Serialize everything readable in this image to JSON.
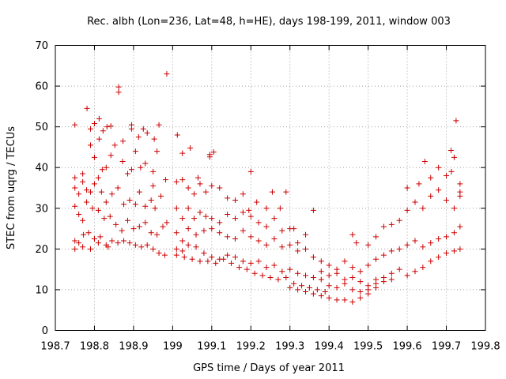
{
  "chart_data": {
    "type": "scatter",
    "title": "Rec. albh (Lon=236, Lat=48, h=HE), days 198-199, 2011, window 003",
    "xlabel": "GPS time / Days of year 2011",
    "ylabel": "STEC from uqrg / TECUs",
    "xlim": [
      198.7,
      199.8
    ],
    "ylim": [
      0,
      70
    ],
    "xticks": [
      198.7,
      198.8,
      198.9,
      199.0,
      199.1,
      199.2,
      199.3,
      199.4,
      199.5,
      199.6,
      199.7,
      199.8
    ],
    "xtick_labels": [
      "198.7",
      "198.8",
      "198.9",
      "199",
      "199.1",
      "199.2",
      "199.3",
      "199.4",
      "199.5",
      "199.6",
      "199.7",
      "199.8"
    ],
    "yticks": [
      0,
      10,
      20,
      30,
      40,
      50,
      60,
      70
    ],
    "ytick_labels": [
      "0",
      "10",
      "20",
      "30",
      "40",
      "50",
      "60",
      "70"
    ],
    "grid": true,
    "marker": "plus",
    "marker_color": "#cc0000",
    "series": [
      {
        "name": "STEC",
        "points": [
          [
            198.75,
            50.5
          ],
          [
            198.781,
            54.5
          ],
          [
            198.79,
            49.5
          ],
          [
            198.8,
            50.8
          ],
          [
            198.812,
            52.0
          ],
          [
            198.822,
            49.0
          ],
          [
            198.832,
            50.0
          ],
          [
            198.842,
            50.2
          ],
          [
            198.862,
            59.8
          ],
          [
            198.862,
            58.5
          ],
          [
            198.873,
            46.5
          ],
          [
            198.895,
            50.5
          ],
          [
            198.895,
            49.5
          ],
          [
            198.913,
            47.5
          ],
          [
            198.925,
            49.5
          ],
          [
            198.935,
            48.5
          ],
          [
            198.953,
            47.0
          ],
          [
            198.965,
            50.5
          ],
          [
            198.985,
            63.0
          ],
          [
            199.012,
            48.0
          ],
          [
            199.025,
            43.5
          ],
          [
            199.045,
            44.8
          ],
          [
            199.095,
            43.2
          ],
          [
            199.105,
            43.8
          ],
          [
            199.095,
            42.6
          ],
          [
            199.065,
            37.5
          ],
          [
            199.2,
            39.0
          ],
          [
            199.645,
            41.5
          ],
          [
            199.712,
            44.2
          ],
          [
            199.72,
            42.5
          ],
          [
            199.725,
            51.5
          ],
          [
            199.713,
            39.0
          ],
          [
            198.75,
            37.5
          ],
          [
            198.77,
            38.5
          ],
          [
            198.79,
            45.5
          ],
          [
            198.8,
            42.5
          ],
          [
            198.812,
            47.0
          ],
          [
            198.82,
            39.5
          ],
          [
            198.83,
            40.0
          ],
          [
            198.842,
            43.0
          ],
          [
            198.852,
            45.5
          ],
          [
            198.872,
            41.5
          ],
          [
            198.885,
            38.5
          ],
          [
            198.895,
            39.5
          ],
          [
            198.905,
            44.0
          ],
          [
            198.918,
            40.0
          ],
          [
            198.93,
            41.0
          ],
          [
            198.95,
            39.0
          ],
          [
            198.96,
            44.0
          ],
          [
            198.982,
            37.0
          ],
          [
            198.95,
            35.5
          ],
          [
            198.75,
            35.0
          ],
          [
            198.76,
            33.5
          ],
          [
            198.77,
            36.5
          ],
          [
            198.78,
            34.5
          ],
          [
            198.79,
            34.0
          ],
          [
            198.8,
            36.0
          ],
          [
            198.81,
            37.5
          ],
          [
            198.818,
            34.0
          ],
          [
            198.83,
            31.5
          ],
          [
            198.845,
            33.5
          ],
          [
            198.86,
            35.0
          ],
          [
            198.875,
            31.0
          ],
          [
            198.89,
            32.0
          ],
          [
            198.905,
            31.0
          ],
          [
            198.915,
            34.0
          ],
          [
            198.93,
            30.5
          ],
          [
            198.945,
            32.0
          ],
          [
            198.955,
            30.0
          ],
          [
            198.97,
            33.0
          ],
          [
            198.985,
            26.5
          ],
          [
            198.75,
            30.5
          ],
          [
            198.76,
            28.5
          ],
          [
            198.77,
            27.0
          ],
          [
            198.78,
            31.5
          ],
          [
            198.795,
            30.0
          ],
          [
            198.81,
            29.5
          ],
          [
            198.825,
            27.5
          ],
          [
            198.84,
            28.0
          ],
          [
            198.855,
            26.0
          ],
          [
            198.87,
            24.5
          ],
          [
            198.885,
            27.0
          ],
          [
            198.9,
            25.0
          ],
          [
            198.915,
            25.5
          ],
          [
            198.93,
            26.5
          ],
          [
            198.945,
            24.0
          ],
          [
            198.96,
            23.5
          ],
          [
            198.975,
            25.5
          ],
          [
            198.75,
            22.0
          ],
          [
            198.76,
            21.5
          ],
          [
            198.772,
            23.5
          ],
          [
            198.785,
            24.0
          ],
          [
            198.8,
            22.5
          ],
          [
            198.815,
            23.0
          ],
          [
            198.83,
            21.0
          ],
          [
            198.845,
            22.0
          ],
          [
            198.86,
            21.5
          ],
          [
            198.875,
            22.0
          ],
          [
            198.89,
            21.5
          ],
          [
            198.905,
            21.0
          ],
          [
            198.92,
            20.5
          ],
          [
            198.935,
            21.0
          ],
          [
            198.95,
            20.0
          ],
          [
            198.965,
            19.0
          ],
          [
            198.98,
            18.5
          ],
          [
            198.75,
            20.0
          ],
          [
            198.77,
            20.5
          ],
          [
            198.79,
            20.0
          ],
          [
            198.81,
            21.5
          ],
          [
            198.835,
            20.5
          ],
          [
            199.01,
            36.5
          ],
          [
            199.025,
            37.0
          ],
          [
            199.04,
            35.0
          ],
          [
            199.055,
            33.5
          ],
          [
            199.07,
            36.0
          ],
          [
            199.085,
            34.0
          ],
          [
            199.1,
            35.5
          ],
          [
            199.12,
            35.0
          ],
          [
            199.14,
            32.5
          ],
          [
            199.16,
            32.0
          ],
          [
            199.18,
            33.5
          ],
          [
            199.195,
            29.5
          ],
          [
            199.215,
            31.5
          ],
          [
            199.24,
            30.0
          ],
          [
            199.255,
            34.0
          ],
          [
            199.275,
            30.0
          ],
          [
            199.29,
            34.0
          ],
          [
            199.31,
            25.0
          ],
          [
            199.01,
            30.0
          ],
          [
            199.025,
            27.5
          ],
          [
            199.04,
            30.0
          ],
          [
            199.055,
            27.5
          ],
          [
            199.07,
            29.0
          ],
          [
            199.085,
            28.0
          ],
          [
            199.1,
            27.5
          ],
          [
            199.12,
            26.5
          ],
          [
            199.14,
            28.5
          ],
          [
            199.16,
            27.5
          ],
          [
            199.18,
            29.0
          ],
          [
            199.2,
            28.0
          ],
          [
            199.22,
            26.5
          ],
          [
            199.24,
            25.5
          ],
          [
            199.26,
            27.5
          ],
          [
            199.28,
            24.5
          ],
          [
            199.3,
            25.0
          ],
          [
            199.32,
            21.5
          ],
          [
            199.34,
            23.5
          ],
          [
            199.36,
            29.5
          ],
          [
            199.38,
            17.0
          ],
          [
            199.01,
            24.0
          ],
          [
            199.025,
            22.0
          ],
          [
            199.04,
            25.0
          ],
          [
            199.06,
            23.5
          ],
          [
            199.08,
            24.5
          ],
          [
            199.1,
            25.0
          ],
          [
            199.12,
            24.0
          ],
          [
            199.14,
            23.0
          ],
          [
            199.16,
            22.5
          ],
          [
            199.18,
            24.5
          ],
          [
            199.2,
            23.0
          ],
          [
            199.22,
            22.0
          ],
          [
            199.24,
            21.0
          ],
          [
            199.26,
            22.5
          ],
          [
            199.28,
            20.5
          ],
          [
            199.3,
            21.0
          ],
          [
            199.32,
            19.5
          ],
          [
            199.34,
            20.0
          ],
          [
            199.36,
            18.0
          ],
          [
            199.01,
            20.0
          ],
          [
            199.025,
            19.5
          ],
          [
            199.04,
            21.0
          ],
          [
            199.06,
            20.5
          ],
          [
            199.08,
            19.0
          ],
          [
            199.1,
            18.0
          ],
          [
            199.12,
            17.5
          ],
          [
            199.14,
            18.5
          ],
          [
            199.16,
            18.0
          ],
          [
            199.18,
            17.0
          ],
          [
            199.2,
            16.5
          ],
          [
            199.22,
            17.0
          ],
          [
            199.24,
            15.5
          ],
          [
            199.26,
            16.0
          ],
          [
            199.28,
            14.5
          ],
          [
            199.3,
            15.0
          ],
          [
            199.32,
            14.0
          ],
          [
            199.34,
            13.5
          ],
          [
            199.36,
            13.0
          ],
          [
            199.38,
            12.5
          ],
          [
            199.01,
            18.5
          ],
          [
            199.03,
            18.0
          ],
          [
            199.05,
            17.5
          ],
          [
            199.07,
            17.0
          ],
          [
            199.09,
            17.0
          ],
          [
            199.11,
            16.5
          ],
          [
            199.13,
            17.5
          ],
          [
            199.15,
            16.5
          ],
          [
            199.17,
            15.5
          ],
          [
            199.19,
            15.0
          ],
          [
            199.21,
            14.0
          ],
          [
            199.23,
            13.5
          ],
          [
            199.25,
            13.0
          ],
          [
            199.27,
            12.5
          ],
          [
            199.29,
            13.0
          ],
          [
            199.31,
            11.5
          ],
          [
            199.33,
            11.0
          ],
          [
            199.35,
            10.5
          ],
          [
            199.37,
            10.0
          ],
          [
            199.39,
            9.5
          ],
          [
            199.3,
            10.5
          ],
          [
            199.32,
            10.0
          ],
          [
            199.34,
            9.5
          ],
          [
            199.36,
            9.0
          ],
          [
            199.38,
            8.5
          ],
          [
            199.4,
            8.0
          ],
          [
            199.42,
            7.5
          ],
          [
            199.44,
            7.5
          ],
          [
            199.46,
            7.0
          ],
          [
            199.48,
            8.0
          ],
          [
            199.5,
            9.0
          ],
          [
            199.52,
            10.5
          ],
          [
            199.38,
            14.5
          ],
          [
            199.4,
            13.5
          ],
          [
            199.42,
            14.0
          ],
          [
            199.44,
            12.5
          ],
          [
            199.46,
            13.0
          ],
          [
            199.48,
            12.0
          ],
          [
            199.5,
            11.0
          ],
          [
            199.52,
            12.5
          ],
          [
            199.54,
            13.0
          ],
          [
            199.56,
            14.0
          ],
          [
            199.58,
            15.0
          ],
          [
            199.6,
            13.5
          ],
          [
            199.62,
            14.5
          ],
          [
            199.64,
            15.5
          ],
          [
            199.66,
            17.0
          ],
          [
            199.68,
            18.0
          ],
          [
            199.7,
            19.0
          ],
          [
            199.72,
            19.5
          ],
          [
            199.735,
            20.0
          ],
          [
            199.4,
            11.0
          ],
          [
            199.42,
            10.5
          ],
          [
            199.44,
            11.5
          ],
          [
            199.46,
            10.0
          ],
          [
            199.48,
            9.5
          ],
          [
            199.5,
            10.0
          ],
          [
            199.52,
            11.5
          ],
          [
            199.54,
            12.0
          ],
          [
            199.56,
            12.5
          ],
          [
            199.4,
            16.0
          ],
          [
            199.42,
            15.0
          ],
          [
            199.44,
            17.0
          ],
          [
            199.46,
            15.5
          ],
          [
            199.48,
            14.5
          ],
          [
            199.5,
            16.0
          ],
          [
            199.52,
            17.5
          ],
          [
            199.54,
            18.5
          ],
          [
            199.56,
            19.5
          ],
          [
            199.58,
            20.0
          ],
          [
            199.6,
            21.0
          ],
          [
            199.62,
            22.0
          ],
          [
            199.64,
            20.5
          ],
          [
            199.66,
            21.5
          ],
          [
            199.68,
            22.5
          ],
          [
            199.7,
            23.0
          ],
          [
            199.72,
            24.0
          ],
          [
            199.735,
            25.5
          ],
          [
            199.46,
            23.5
          ],
          [
            199.47,
            21.5
          ],
          [
            199.5,
            21.0
          ],
          [
            199.52,
            23.0
          ],
          [
            199.54,
            25.5
          ],
          [
            199.56,
            26.0
          ],
          [
            199.58,
            27.0
          ],
          [
            199.6,
            29.5
          ],
          [
            199.62,
            31.5
          ],
          [
            199.64,
            30.0
          ],
          [
            199.66,
            33.0
          ],
          [
            199.68,
            34.5
          ],
          [
            199.7,
            32.0
          ],
          [
            199.72,
            30.0
          ],
          [
            199.735,
            34.0
          ],
          [
            199.6,
            35.0
          ],
          [
            199.63,
            36.0
          ],
          [
            199.66,
            37.5
          ],
          [
            199.68,
            40.0
          ],
          [
            199.7,
            38.0
          ],
          [
            199.735,
            36.0
          ],
          [
            199.735,
            33.0
          ]
        ]
      }
    ]
  }
}
